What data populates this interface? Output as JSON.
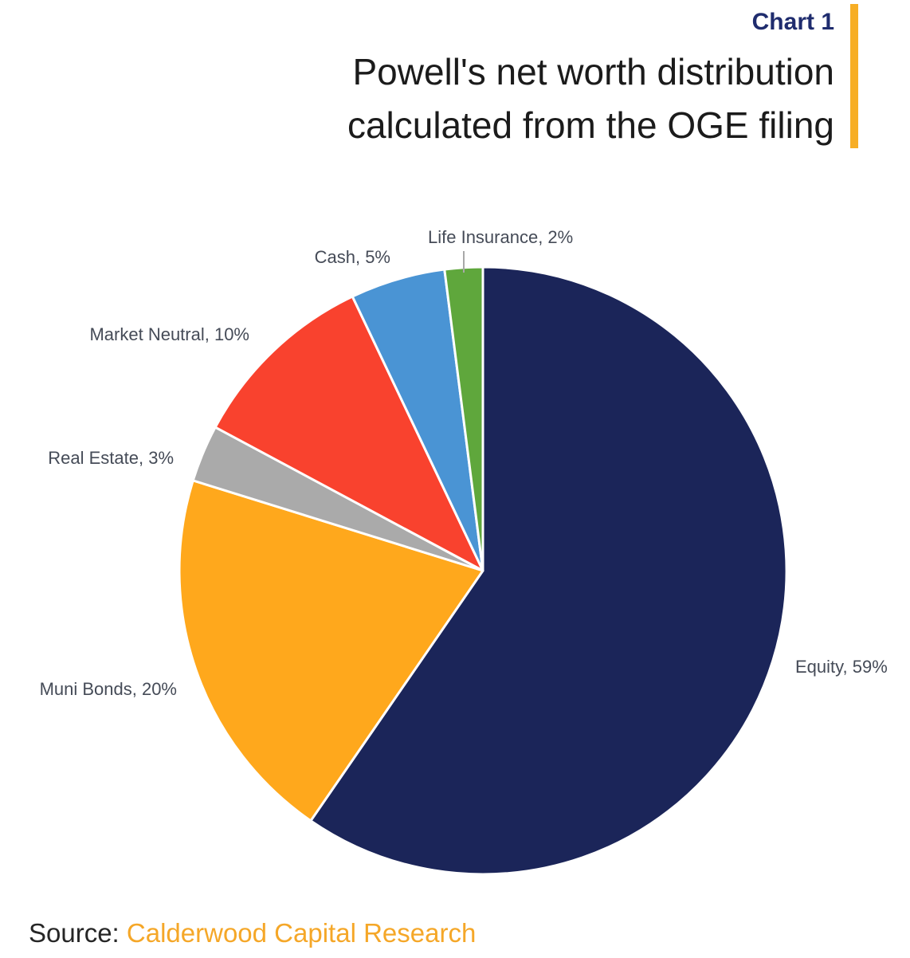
{
  "header": {
    "tag": "Chart 1",
    "title_line1": "Powell's net worth distribution",
    "title_line2": "calculated from the OGE filing"
  },
  "source": {
    "prefix": "Source:",
    "name": "Calderwood Capital Research"
  },
  "colors": {
    "tag": "#1F2C6E",
    "accent_bar": "#F7AE25",
    "title_text": "#1B1B1B",
    "label_text": "#454B57",
    "source_prefix": "#262626",
    "source_name": "#F5A728",
    "slice_border": "#FFFFFF"
  },
  "chart_data": {
    "type": "pie",
    "title": "Powell's net worth distribution calculated from the OGE filing",
    "categories": [
      "Equity",
      "Muni Bonds",
      "Real Estate",
      "Market Neutral",
      "Cash",
      "Life Insurance"
    ],
    "values": [
      59,
      20,
      3,
      10,
      5,
      2
    ],
    "unit": "percent",
    "slice_colors": [
      "#1B2559",
      "#FFA81C",
      "#AAAAAA",
      "#F9422E",
      "#4A94D4",
      "#5FA73C"
    ],
    "labels": [
      "Equity, 59%",
      "Muni Bonds, 20%",
      "Real Estate, 3%",
      "Market Neutral, 10%",
      "Cash, 5%",
      "Life Insurance, 2%"
    ],
    "start_angle_deg": 0,
    "direction": "clockwise",
    "label_position": "outside",
    "legend": "none"
  }
}
